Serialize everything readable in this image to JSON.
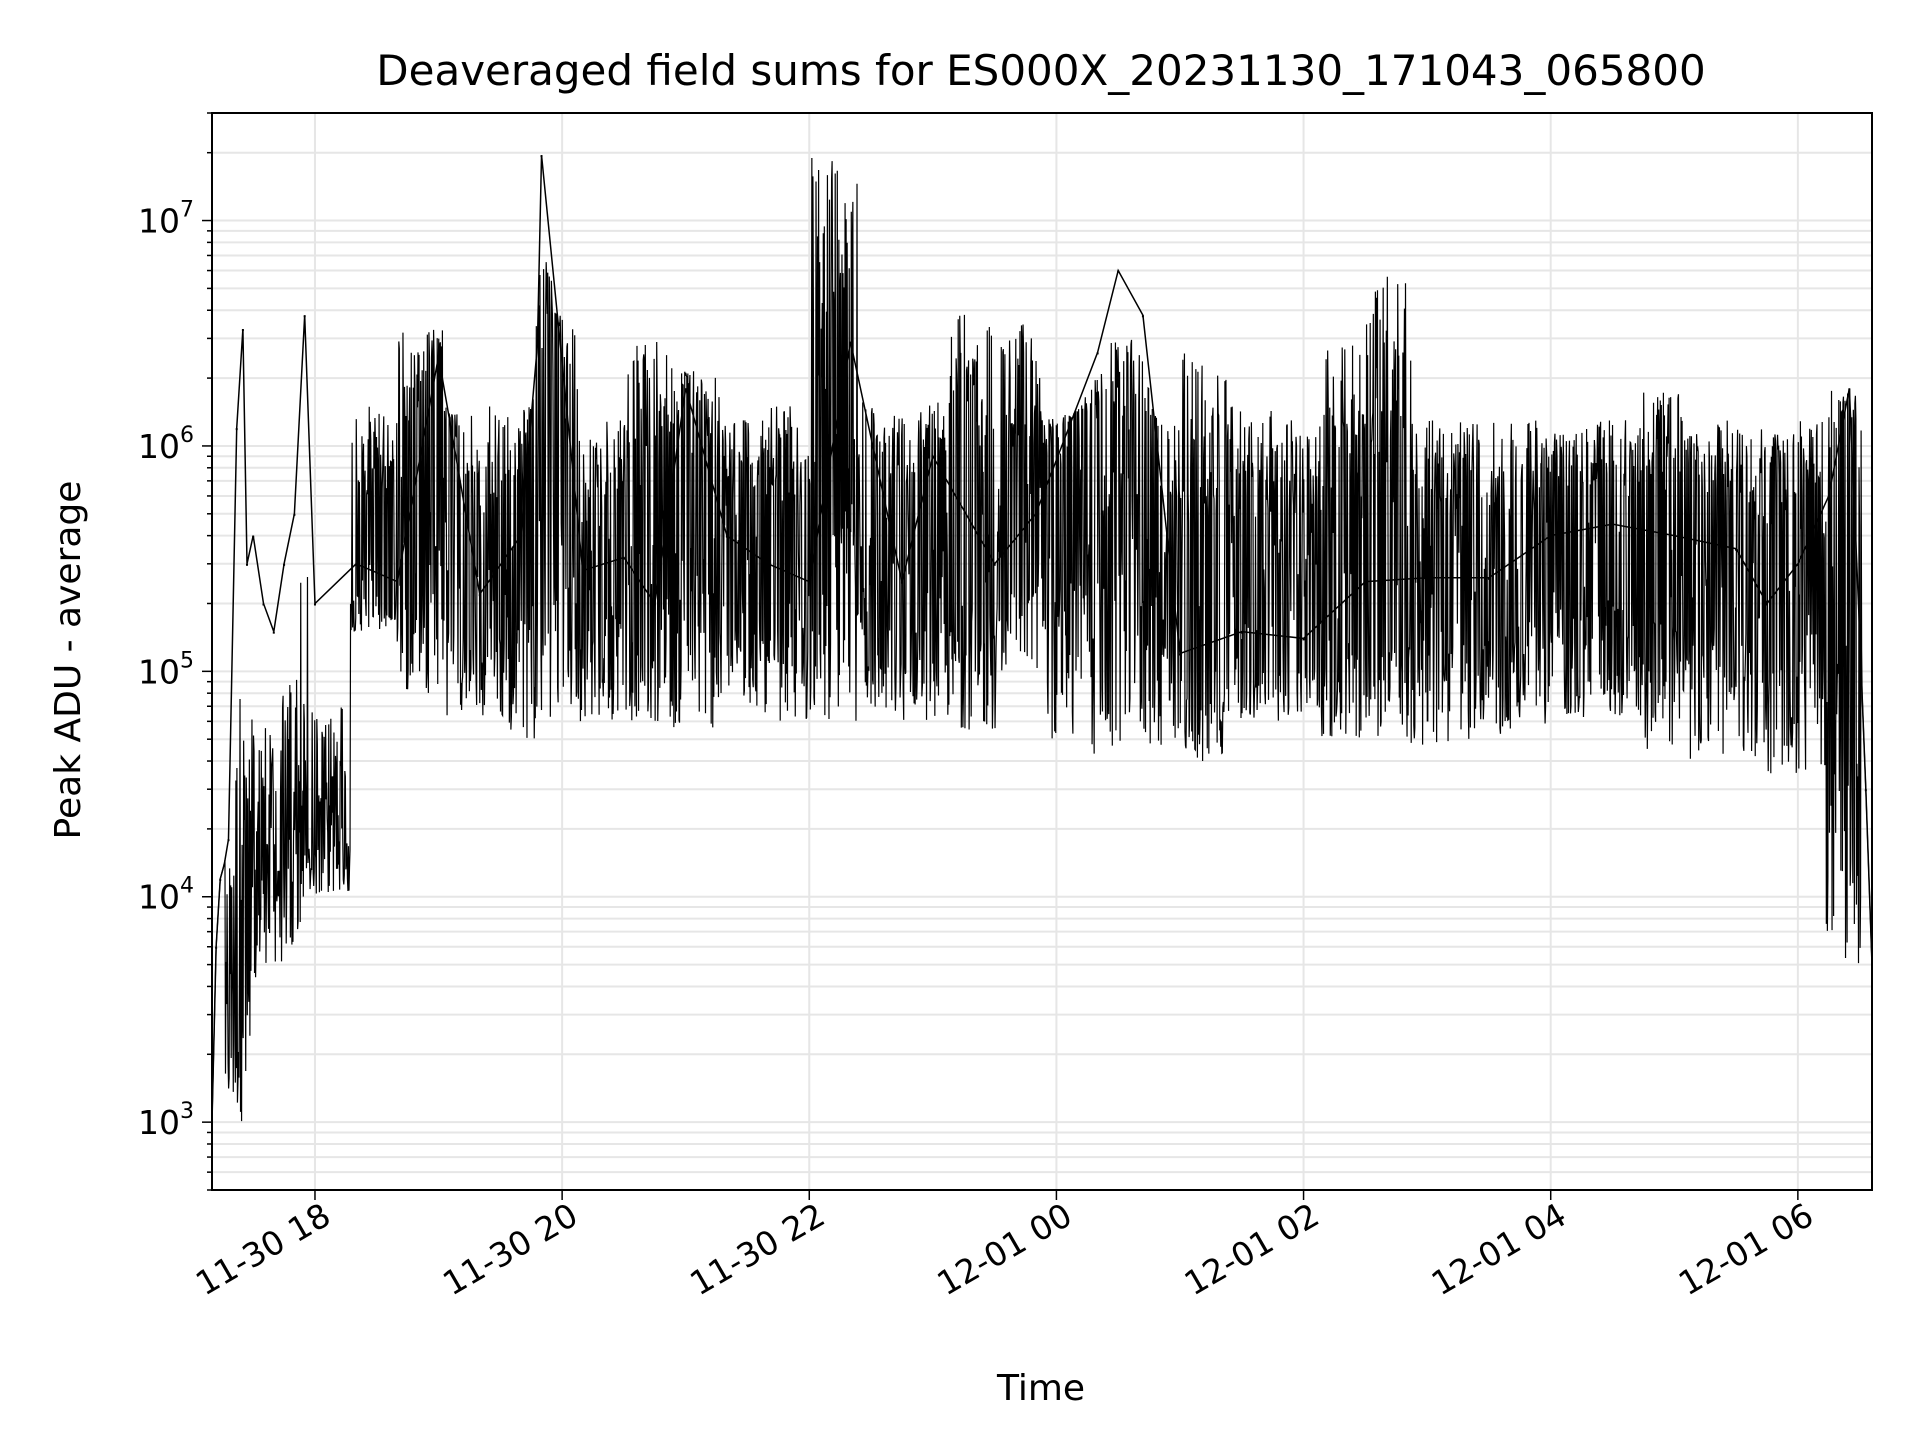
{
  "chart_data": {
    "type": "line",
    "title": "Deaveraged field sums for ES000X_20231130_171043_065800",
    "xlabel": "Time",
    "ylabel": "Peak ADU - average",
    "x_type": "datetime",
    "y_scale": "log",
    "xlim": [
      "2023-11-30 17:10",
      "2023-12-01 06:36"
    ],
    "ylim": [
      500,
      30000000
    ],
    "grid": true,
    "legend": "none",
    "colors": {
      "line": "#000000",
      "grid": "#e6e6e6",
      "axes": "#000000",
      "background": "#ffffff"
    },
    "x_ticks": [
      {
        "value": "2023-11-30 18:00",
        "label": "11-30 18"
      },
      {
        "value": "2023-11-30 20:00",
        "label": "11-30 20"
      },
      {
        "value": "2023-11-30 22:00",
        "label": "11-30 22"
      },
      {
        "value": "2023-12-01 00:00",
        "label": "12-01 00"
      },
      {
        "value": "2023-12-01 02:00",
        "label": "12-01 02"
      },
      {
        "value": "2023-12-01 04:00",
        "label": "12-01 04"
      },
      {
        "value": "2023-12-01 06:00",
        "label": "12-01 06"
      }
    ],
    "y_ticks": [
      {
        "value": 1000,
        "base": "10",
        "exp": "3"
      },
      {
        "value": 10000,
        "base": "10",
        "exp": "4"
      },
      {
        "value": 100000,
        "base": "10",
        "exp": "5"
      },
      {
        "value": 1000000,
        "base": "10",
        "exp": "6"
      },
      {
        "value": 10000000,
        "base": "10",
        "exp": "7"
      }
    ],
    "series": [
      {
        "x": [
          "2023-11-30 17:10",
          "2023-11-30 17:12",
          "2023-11-30 17:14",
          "2023-11-30 17:16",
          "2023-11-30 17:18",
          "2023-11-30 17:22",
          "2023-11-30 17:25",
          "2023-11-30 17:27",
          "2023-11-30 17:30",
          "2023-11-30 17:35",
          "2023-11-30 17:40",
          "2023-11-30 17:45",
          "2023-11-30 17:50",
          "2023-11-30 17:55",
          "2023-11-30 18:00",
          "2023-11-30 18:20",
          "2023-11-30 18:40",
          "2023-11-30 19:00",
          "2023-11-30 19:20",
          "2023-11-30 19:40",
          "2023-11-30 19:48",
          "2023-11-30 19:50",
          "2023-11-30 20:10",
          "2023-11-30 20:30",
          "2023-11-30 20:45",
          "2023-11-30 21:00",
          "2023-11-30 21:20",
          "2023-11-30 21:40",
          "2023-11-30 22:00",
          "2023-11-30 22:20",
          "2023-11-30 22:45",
          "2023-11-30 23:00",
          "2023-11-30 23:30",
          "2023-11-30 23:50",
          "2023-12-01 00:20",
          "2023-12-01 00:30",
          "2023-12-01 00:42",
          "2023-12-01 01:00",
          "2023-12-01 01:30",
          "2023-12-01 02:00",
          "2023-12-01 02:30",
          "2023-12-01 03:00",
          "2023-12-01 03:30",
          "2023-12-01 04:00",
          "2023-12-01 04:30",
          "2023-12-01 05:00",
          "2023-12-01 05:30",
          "2023-12-01 05:45",
          "2023-12-01 06:00",
          "2023-12-01 06:15",
          "2023-12-01 06:25",
          "2023-12-01 06:30",
          "2023-12-01 06:33",
          "2023-12-01 06:36"
        ],
        "y": [
          1000,
          6000,
          12000,
          14000,
          18000,
          1200000,
          3300000,
          300000,
          400000,
          200000,
          150000,
          300000,
          500000,
          3800000,
          200000,
          300000,
          250000,
          2500000,
          220000,
          400000,
          2800000,
          19500000,
          280000,
          320000,
          200000,
          1800000,
          400000,
          300000,
          250000,
          2900000,
          250000,
          900000,
          300000,
          500000,
          2600000,
          6000000,
          3800000,
          120000,
          150000,
          140000,
          250000,
          260000,
          260000,
          400000,
          450000,
          400000,
          350000,
          200000,
          300000,
          600000,
          1800000,
          150000,
          30000,
          5000
        ],
        "envelope": {
          "description_free": true,
          "upper": [
            6000,
            14000,
            18000,
            1500000,
            3300000,
            1400000,
            1500000,
            3800000,
            1300000,
            2900000,
            2200000,
            1400000,
            1500000,
            19500000,
            1500000,
            1700000,
            4100000,
            3500000,
            1400000,
            1500000,
            1400000,
            2900000,
            1500000,
            1300000,
            2800000,
            6000000,
            1300000,
            1300000,
            1300000,
            1250000,
            1300000,
            1800000,
            1300000,
            1200000,
            1300000,
            1800000
          ],
          "lower": [
            1000,
            5000,
            10000,
            150000,
            80000,
            60000,
            50000,
            60000,
            60000,
            60000,
            55000,
            65000,
            60000,
            60000,
            60000,
            60000,
            55000,
            100000,
            50000,
            40000,
            45000,
            40000,
            60000,
            60000,
            50000,
            50000,
            45000,
            50000,
            55000,
            60000,
            55000,
            45000,
            40000,
            35000,
            35000,
            5000
          ]
        }
      }
    ]
  }
}
